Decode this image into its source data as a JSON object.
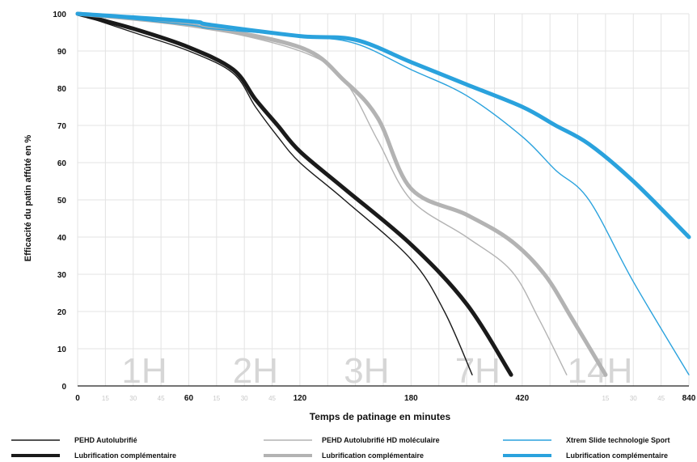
{
  "chart_data": {
    "type": "line",
    "ylabel": "Efficacité du patin affûté en %",
    "xlabel": "Temps de patinage en minutes",
    "ylim": [
      0,
      100
    ],
    "y_ticks": [
      "0",
      "10",
      "20",
      "30",
      "40",
      "50",
      "60",
      "70",
      "80",
      "90",
      "100"
    ],
    "x_major_ticks": [
      "0",
      "60",
      "120",
      "180",
      "420",
      "840"
    ],
    "x_minor_ticks": [
      "15",
      "30",
      "45",
      "15",
      "30",
      "45",
      "15",
      "30",
      "45"
    ],
    "band_labels": [
      "1H",
      "2H",
      "3H",
      "7H",
      "14H"
    ],
    "grid": true,
    "colors": {
      "black": "#1a1a1a",
      "grey": "#b3b3b3",
      "blue": "#2aa2dd"
    },
    "series": [
      {
        "name": "PEHD Autolubrifié",
        "color": "#1a1a1a",
        "style": "thin",
        "x": [
          0,
          0.5,
          1,
          1.4,
          1.6,
          1.8,
          2,
          2.4,
          3,
          3.3,
          3.55
        ],
        "y": [
          100,
          95,
          90,
          84,
          75,
          67,
          60,
          50,
          34,
          20,
          3
        ]
      },
      {
        "name": "Lubrification complémentaire",
        "color": "#1a1a1a",
        "style": "thick",
        "x": [
          0,
          0.5,
          1,
          1.4,
          1.6,
          1.8,
          2,
          2.4,
          3,
          3.5,
          3.9
        ],
        "y": [
          100,
          96,
          91,
          85,
          77,
          70,
          63,
          53,
          38,
          22,
          3
        ]
      },
      {
        "name": "PEHD Autolubrifié HD moléculaire",
        "color": "#b3b3b3",
        "style": "thin",
        "x": [
          0,
          1,
          2,
          2.4,
          2.7,
          3,
          3.5,
          3.9,
          4.15,
          4.4
        ],
        "y": [
          100,
          97,
          90,
          82,
          66,
          50,
          40,
          31,
          18,
          3
        ]
      },
      {
        "name": "Lubrification complémentaire",
        "color": "#b3b3b3",
        "style": "thick",
        "x": [
          0,
          1,
          2,
          2.4,
          2.7,
          3,
          3.5,
          3.9,
          4.2,
          4.45,
          4.75
        ],
        "y": [
          100,
          97,
          91,
          82,
          72,
          53,
          46,
          39,
          30,
          18,
          3
        ]
      },
      {
        "name": "Xtrem Slide technologie Sport",
        "color": "#2aa2dd",
        "style": "thin",
        "x": [
          0,
          1,
          1.2,
          2,
          2.5,
          3,
          3.5,
          4,
          4.3,
          4.6,
          5,
          5.5
        ],
        "y": [
          100,
          97,
          96,
          94,
          92,
          85,
          78,
          67,
          58,
          50,
          28,
          3
        ]
      },
      {
        "name": "Lubrification complémentaire",
        "color": "#2aa2dd",
        "style": "thick",
        "x": [
          0,
          1,
          1.2,
          2,
          2.5,
          3,
          3.5,
          4,
          4.3,
          4.6,
          5,
          5.5
        ],
        "y": [
          100,
          98,
          97,
          94,
          93,
          87,
          81,
          75,
          70,
          65,
          55,
          40
        ]
      }
    ]
  }
}
